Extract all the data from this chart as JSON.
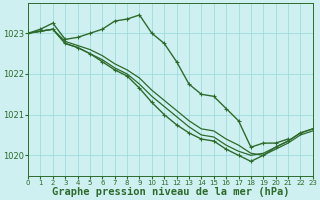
{
  "background_color": "#cff0f0",
  "grid_color": "#9ddcdc",
  "line_color": "#2d6b2d",
  "xlabel": "Graphe pression niveau de la mer (hPa)",
  "ylim": [
    1019.5,
    1023.75
  ],
  "xlim": [
    0,
    23
  ],
  "yticks": [
    1020,
    1021,
    1022,
    1023
  ],
  "xticks": [
    0,
    1,
    2,
    3,
    4,
    5,
    6,
    7,
    8,
    9,
    10,
    11,
    12,
    13,
    14,
    15,
    16,
    17,
    18,
    19,
    20,
    21,
    22,
    23
  ],
  "series": [
    {
      "x": [
        0,
        1,
        2,
        3,
        4,
        5,
        6,
        7,
        8,
        9,
        10,
        11,
        12,
        13,
        14,
        15,
        16,
        17,
        18,
        19,
        20,
        21
      ],
      "y": [
        1023.0,
        1023.1,
        1023.25,
        1022.85,
        1022.9,
        1023.0,
        1023.1,
        1023.3,
        1023.35,
        1023.45,
        1023.0,
        1022.75,
        1022.3,
        1021.75,
        1021.5,
        1021.45,
        1021.15,
        1020.85,
        1020.2,
        1020.3,
        1020.3,
        1020.4
      ],
      "markers": true,
      "lw": 1.0
    },
    {
      "x": [
        0,
        1,
        2,
        3,
        4,
        5,
        6,
        7,
        8,
        9,
        10,
        11,
        12,
        13,
        14,
        15,
        16,
        17,
        18,
        19,
        20,
        21,
        22,
        23
      ],
      "y": [
        1023.0,
        1023.05,
        1023.1,
        1022.8,
        1022.7,
        1022.6,
        1022.45,
        1022.25,
        1022.1,
        1021.9,
        1021.6,
        1021.35,
        1021.1,
        1020.85,
        1020.65,
        1020.6,
        1020.4,
        1020.25,
        1020.05,
        1020.0,
        1020.15,
        1020.3,
        1020.5,
        1020.6
      ],
      "markers": false,
      "lw": 0.9
    },
    {
      "x": [
        0,
        1,
        2,
        3,
        4,
        5,
        6,
        7,
        8,
        9,
        10,
        11,
        12,
        13,
        14,
        15,
        16,
        17,
        18,
        19,
        20,
        21,
        22,
        23
      ],
      "y": [
        1023.0,
        1023.05,
        1023.1,
        1022.75,
        1022.65,
        1022.5,
        1022.35,
        1022.15,
        1022.0,
        1021.75,
        1021.45,
        1021.2,
        1020.95,
        1020.7,
        1020.5,
        1020.45,
        1020.25,
        1020.1,
        1020.0,
        1020.05,
        1020.2,
        1020.35,
        1020.55,
        1020.65
      ],
      "markers": false,
      "lw": 0.9
    },
    {
      "x": [
        0,
        1,
        2,
        3,
        4,
        5,
        6,
        7,
        8,
        9,
        10,
        11,
        12,
        13,
        14,
        15,
        16,
        17,
        18,
        19,
        20,
        21,
        22,
        23
      ],
      "y": [
        1023.0,
        1023.05,
        1023.1,
        1022.75,
        1022.65,
        1022.5,
        1022.3,
        1022.1,
        1021.95,
        1021.65,
        1021.3,
        1021.0,
        1020.75,
        1020.55,
        1020.4,
        1020.35,
        1020.15,
        1020.0,
        1019.85,
        1020.0,
        1020.2,
        1020.35,
        1020.55,
        1020.65
      ],
      "markers": true,
      "lw": 1.0
    }
  ]
}
